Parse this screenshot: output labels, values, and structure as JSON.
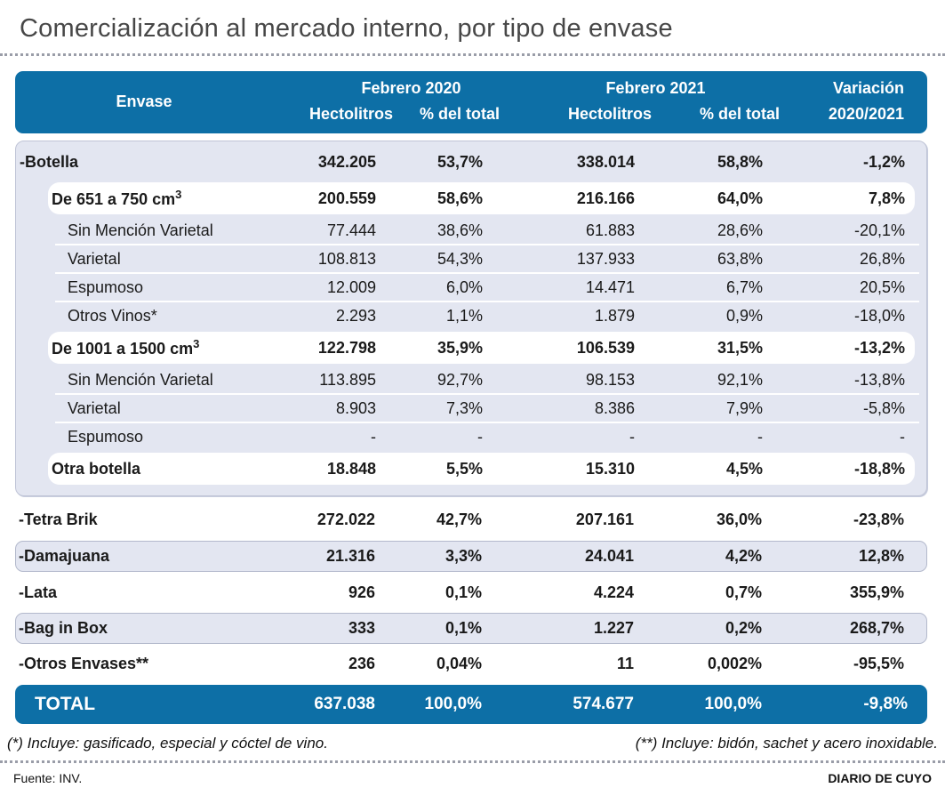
{
  "title": "Comercialización al mercado interno, por tipo de envase",
  "colors": {
    "header_blue": "#0D6FA6",
    "panel_lavender": "#E3E6F1",
    "band_white": "#FFFFFF",
    "title_gray": "#474747",
    "text": "#1A1A1A"
  },
  "header": {
    "envase": "Envase",
    "feb2020": "Febrero 2020",
    "feb2021": "Febrero 2021",
    "hectolitros": "Hectolitros",
    "pct_total": "% del total",
    "variacion_l1": "Variación",
    "variacion_l2": "2020/2021"
  },
  "chart_data": {
    "type": "table",
    "title": "Comercialización al mercado interno, por tipo de envase",
    "column_groups": [
      "Febrero 2020",
      "Febrero 2021"
    ],
    "columns": [
      "Envase",
      "Hectolitros",
      "% del total",
      "Hectolitros",
      "% del total",
      "Variación 2020/2021"
    ],
    "rows": [
      {
        "label": "-Botella",
        "sup": "",
        "indent": 0,
        "emphasis": true,
        "values": [
          "342.205",
          "53,7%",
          "338.014",
          "58,8%",
          "-1,2%"
        ]
      },
      {
        "label": "De 651 a 750 cm",
        "sup": "3",
        "indent": 1,
        "emphasis": true,
        "values": [
          "200.559",
          "58,6%",
          "216.166",
          "64,0%",
          "7,8%"
        ]
      },
      {
        "label": "Sin Mención Varietal",
        "sup": "",
        "indent": 2,
        "emphasis": false,
        "values": [
          "77.444",
          "38,6%",
          "61.883",
          "28,6%",
          "-20,1%"
        ]
      },
      {
        "label": "Varietal",
        "sup": "",
        "indent": 2,
        "emphasis": false,
        "values": [
          "108.813",
          "54,3%",
          "137.933",
          "63,8%",
          "26,8%"
        ]
      },
      {
        "label": "Espumoso",
        "sup": "",
        "indent": 2,
        "emphasis": false,
        "values": [
          "12.009",
          "6,0%",
          "14.471",
          "6,7%",
          "20,5%"
        ]
      },
      {
        "label": "Otros Vinos*",
        "sup": "",
        "indent": 2,
        "emphasis": false,
        "values": [
          "2.293",
          "1,1%",
          "1.879",
          "0,9%",
          "-18,0%"
        ]
      },
      {
        "label": "De 1001 a 1500 cm",
        "sup": "3",
        "indent": 1,
        "emphasis": true,
        "values": [
          "122.798",
          "35,9%",
          "106.539",
          "31,5%",
          "-13,2%"
        ]
      },
      {
        "label": "Sin Mención Varietal",
        "sup": "",
        "indent": 2,
        "emphasis": false,
        "values": [
          "113.895",
          "92,7%",
          "98.153",
          "92,1%",
          "-13,8%"
        ]
      },
      {
        "label": "Varietal",
        "sup": "",
        "indent": 2,
        "emphasis": false,
        "values": [
          "8.903",
          "7,3%",
          "8.386",
          "7,9%",
          "-5,8%"
        ]
      },
      {
        "label": "Espumoso",
        "sup": "",
        "indent": 2,
        "emphasis": false,
        "values": [
          "-",
          "-",
          "-",
          "-",
          "-"
        ]
      },
      {
        "label": "Otra botella",
        "sup": "",
        "indent": 1,
        "emphasis": true,
        "values": [
          "18.848",
          "5,5%",
          "15.310",
          "4,5%",
          "-18,8%"
        ]
      },
      {
        "label": "-Tetra Brik",
        "sup": "",
        "indent": 0,
        "emphasis": true,
        "values": [
          "272.022",
          "42,7%",
          "207.161",
          "36,0%",
          "-23,8%"
        ]
      },
      {
        "label": "-Damajuana",
        "sup": "",
        "indent": 0,
        "emphasis": true,
        "values": [
          "21.316",
          "3,3%",
          "24.041",
          "4,2%",
          "12,8%"
        ]
      },
      {
        "label": "-Lata",
        "sup": "",
        "indent": 0,
        "emphasis": true,
        "values": [
          "926",
          "0,1%",
          "4.224",
          "0,7%",
          "355,9%"
        ]
      },
      {
        "label": "-Bag in Box",
        "sup": "",
        "indent": 0,
        "emphasis": true,
        "values": [
          "333",
          "0,1%",
          "1.227",
          "0,2%",
          "268,7%"
        ]
      },
      {
        "label": "-Otros Envases**",
        "sup": "",
        "indent": 0,
        "emphasis": true,
        "values": [
          "236",
          "0,04%",
          "11",
          "0,002%",
          "-95,5%"
        ]
      }
    ],
    "total_row": {
      "label": "TOTAL",
      "values": [
        "637.038",
        "100,0%",
        "574.677",
        "100,0%",
        "-9,8%"
      ]
    }
  },
  "footnotes": {
    "left": "(*) Incluye: gasificado, especial y cóctel de vino.",
    "right": "(**) Incluye: bidón, sachet y acero inoxidable."
  },
  "footer": {
    "source": "Fuente: INV.",
    "credit": "DIARIO DE CUYO"
  }
}
